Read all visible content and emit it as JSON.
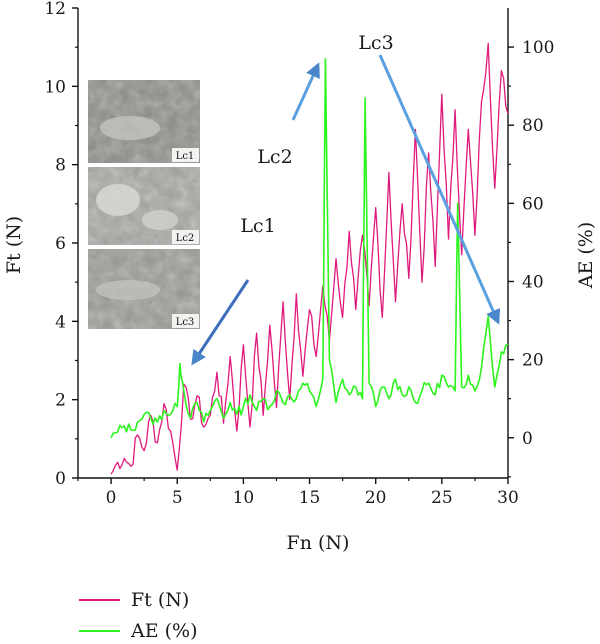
{
  "chart_data": {
    "type": "line",
    "xlabel": "Fn (N)",
    "ylabel_left": "Ft (N)",
    "ylabel_right": "AE (%)",
    "xlim": [
      -2.5,
      30
    ],
    "ylim_left": [
      0,
      12
    ],
    "ylim_right": [
      -10.3,
      110
    ],
    "x_ticks": [
      "0",
      "5",
      "10",
      "15",
      "20",
      "25",
      "30"
    ],
    "y_left_ticks": [
      "0",
      "2",
      "4",
      "6",
      "8",
      "10",
      "12"
    ],
    "y_right_ticks": [
      "0",
      "20",
      "40",
      "60",
      "80",
      "100"
    ],
    "legend_position": "bottom-left",
    "series": [
      {
        "name": "Ft (N)",
        "axis": "left",
        "color": "#e0197d",
        "x": [
          0,
          0.5,
          1,
          1.5,
          2,
          2.5,
          3,
          3.5,
          4,
          4.5,
          5,
          5.5,
          6,
          6.5,
          7,
          7.5,
          8,
          8.5,
          9,
          9.5,
          10,
          10.5,
          11,
          11.5,
          12,
          12.5,
          13,
          13.5,
          14,
          14.5,
          15,
          15.5,
          16,
          16.5,
          17,
          17.5,
          18,
          18.5,
          19,
          19.5,
          20,
          20.5,
          21,
          21.5,
          22,
          22.5,
          23,
          23.5,
          24,
          24.5,
          25,
          25.5,
          26,
          26.5,
          27,
          27.5,
          28,
          28.5,
          29,
          29.5,
          30
        ],
        "values": [
          0.1,
          0.4,
          0.5,
          0.3,
          1.1,
          0.7,
          1.6,
          0.9,
          1.9,
          1.2,
          0.2,
          2.4,
          1.5,
          2.1,
          1.3,
          1.6,
          2.7,
          1.4,
          3.1,
          1.2,
          3.4,
          1.3,
          3.7,
          1.6,
          3.9,
          1.8,
          4.5,
          2.0,
          4.7,
          2.6,
          4.3,
          3.1,
          4.9,
          3.5,
          5.6,
          4.1,
          6.3,
          4.3,
          6.2,
          4.4,
          6.9,
          4.1,
          7.8,
          4.5,
          7.0,
          5.1,
          8.9,
          5.0,
          8.3,
          5.4,
          9.8,
          6.1,
          9.4,
          5.7,
          8.9,
          6.2,
          9.6,
          11.1,
          7.4,
          10.4,
          9.3
        ]
      },
      {
        "name": "AE (%)",
        "axis": "right",
        "color": "#2cf51e",
        "x": [
          0,
          0.5,
          1,
          1.5,
          2,
          2.5,
          3,
          3.5,
          4,
          4.5,
          5,
          5.2,
          5.5,
          6,
          6.5,
          7,
          7.5,
          8,
          8.5,
          9,
          9.5,
          10,
          10.5,
          11,
          11.5,
          12,
          12.5,
          13,
          13.5,
          14,
          14.5,
          15,
          15.5,
          16,
          16.2,
          16.5,
          17,
          17.5,
          18,
          18.5,
          19,
          19.2,
          19.5,
          20,
          20.5,
          21,
          21.5,
          22,
          22.5,
          23,
          23.5,
          24,
          24.5,
          25,
          25.5,
          26,
          26.2,
          26.5,
          27,
          27.5,
          28,
          28.5,
          29,
          29.5,
          30
        ],
        "values": [
          0,
          1.5,
          3,
          2,
          4,
          6,
          5,
          4,
          7,
          6,
          8,
          19,
          12,
          5,
          9,
          4,
          7,
          10,
          5,
          9,
          6,
          8,
          11,
          7,
          10,
          8,
          12,
          9,
          11,
          10,
          14,
          12,
          8,
          15,
          97,
          20,
          9,
          15,
          11,
          13,
          10,
          87,
          14,
          8,
          13,
          10,
          15,
          11,
          13,
          9,
          12,
          14,
          11,
          16,
          13,
          12,
          60,
          13,
          16,
          12,
          18,
          31,
          13,
          22,
          24
        ]
      }
    ],
    "annotations": [
      "Lc1",
      "Lc2",
      "Lc3"
    ],
    "inset_labels": [
      "Lc1",
      "Lc2",
      "Lc3"
    ]
  }
}
